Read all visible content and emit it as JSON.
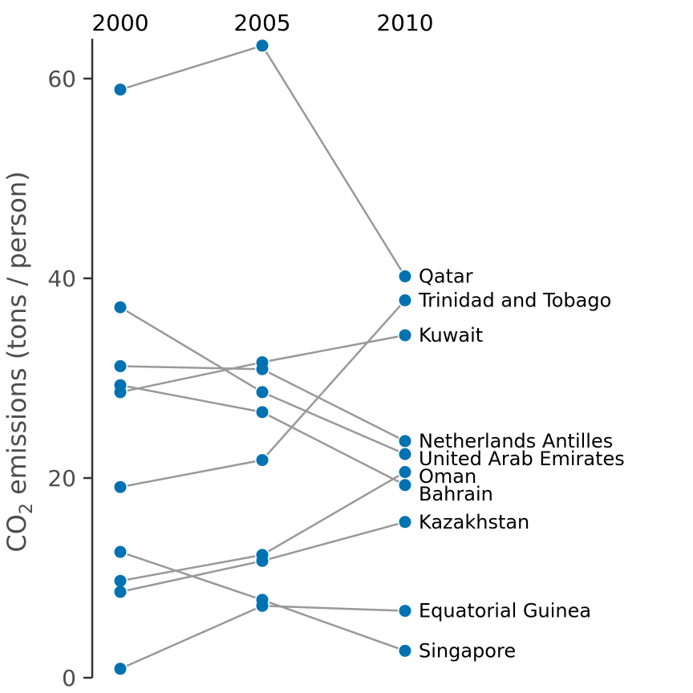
{
  "chart_data": {
    "type": "line",
    "subtype": "slopegraph",
    "title": "",
    "x": [
      "2000",
      "2005",
      "2010"
    ],
    "xlabel": "",
    "ylabel_main": "CO",
    "ylabel_sub": "2",
    "ylabel_rest": " emissions (tons / person)",
    "ylim": [
      0,
      64
    ],
    "yticks": [
      "0",
      "20",
      "40",
      "60"
    ],
    "yticks_values": [
      0,
      20,
      40,
      60
    ],
    "grid": false,
    "legend": "direct labels right of 2010",
    "colors": {
      "point": "#0072b2",
      "line": "#999999",
      "axis": "#333333"
    },
    "series": [
      {
        "name": "Qatar",
        "values": [
          58.9,
          63.3,
          40.2
        ]
      },
      {
        "name": "Trinidad and Tobago",
        "values": [
          19.1,
          21.8,
          37.8
        ]
      },
      {
        "name": "Kuwait",
        "values": [
          28.6,
          31.6,
          34.3
        ]
      },
      {
        "name": "Netherlands Antilles",
        "values": [
          31.2,
          30.9,
          23.7
        ]
      },
      {
        "name": "United Arab Emirates",
        "values": [
          37.1,
          28.6,
          22.4
        ]
      },
      {
        "name": "Oman",
        "values": [
          9.7,
          12.3,
          20.6
        ]
      },
      {
        "name": "Bahrain",
        "values": [
          29.3,
          26.6,
          19.3
        ]
      },
      {
        "name": "Kazakhstan",
        "values": [
          8.6,
          11.7,
          15.6
        ]
      },
      {
        "name": "Equatorial Guinea",
        "values": [
          0.9,
          7.2,
          6.7
        ]
      },
      {
        "name": "Singapore",
        "values": [
          12.6,
          7.8,
          2.7
        ]
      }
    ]
  }
}
